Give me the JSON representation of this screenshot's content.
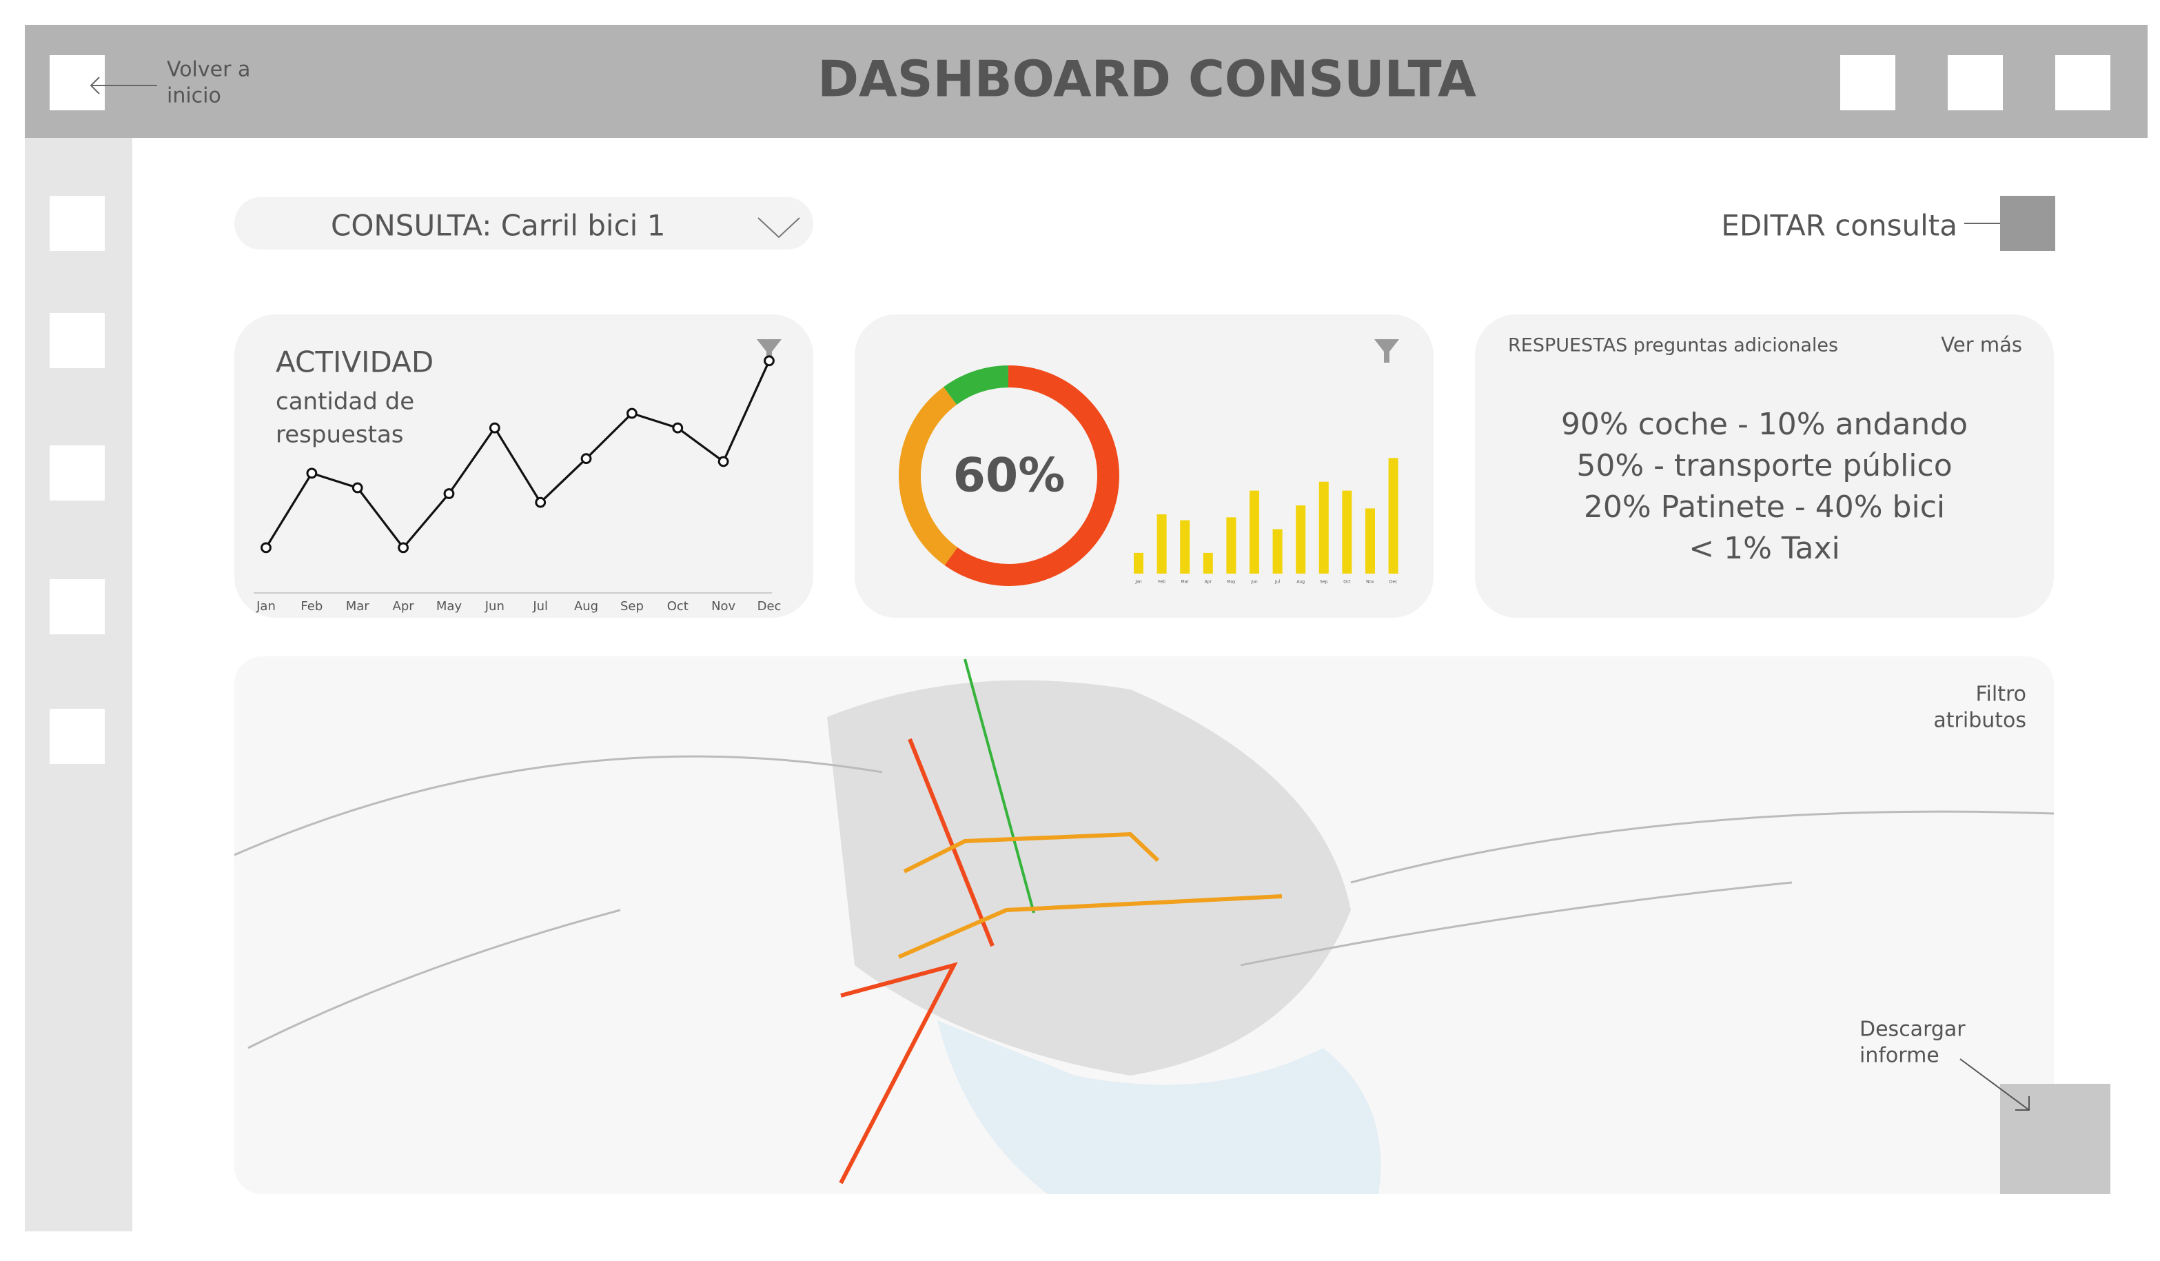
{
  "header": {
    "title": "DASHBOARD CONSULTA",
    "back_label": [
      "Volver a",
      "inicio"
    ]
  },
  "query": {
    "label": "CONSULTA: Carril bici 1",
    "edit_label": "EDITAR consulta"
  },
  "activity": {
    "type": "line",
    "title": "ACTIVIDAD",
    "subtitle": [
      "cantidad de",
      "respuestas"
    ],
    "categories": [
      "Jan",
      "Feb",
      "Mar",
      "Apr",
      "May",
      "Jun",
      "Jul",
      "Aug",
      "Sep",
      "Oct",
      "Nov",
      "Dec"
    ],
    "values": [
      31,
      82,
      72,
      31,
      68,
      113,
      62,
      92,
      123,
      113,
      90,
      159
    ],
    "color": "#111111",
    "ylim": [
      0,
      170
    ]
  },
  "share": {
    "type": "pie",
    "center_label": "60%",
    "center_value": 60,
    "segments": [
      {
        "color": "#f04a1c",
        "value": 60
      },
      {
        "color": "#f0a01c",
        "value": 30
      },
      {
        "color": "#35b33a",
        "value": 10
      }
    ],
    "bars": {
      "type": "bar",
      "categories": [
        "Jan",
        "Feb",
        "Mar",
        "Apr",
        "May",
        "Jun",
        "Jul",
        "Aug",
        "Sep",
        "Oct",
        "Nov",
        "Dec"
      ],
      "values": [
        14,
        40,
        36,
        14,
        38,
        56,
        30,
        46,
        62,
        56,
        44,
        78
      ],
      "color": "#f2d40c",
      "ylim": [
        0,
        80
      ]
    }
  },
  "answers": {
    "title": "RESPUESTAS preguntas adicionales",
    "more": "Ver más",
    "lines": [
      "90% coche - 10% andando",
      "50%  - transporte público",
      "20% Patinete - 40% bici",
      "< 1% Taxi"
    ]
  },
  "map": {
    "filter_label": [
      "Filtro",
      "atributos"
    ],
    "download_label": [
      "Descargar",
      "informe"
    ]
  }
}
